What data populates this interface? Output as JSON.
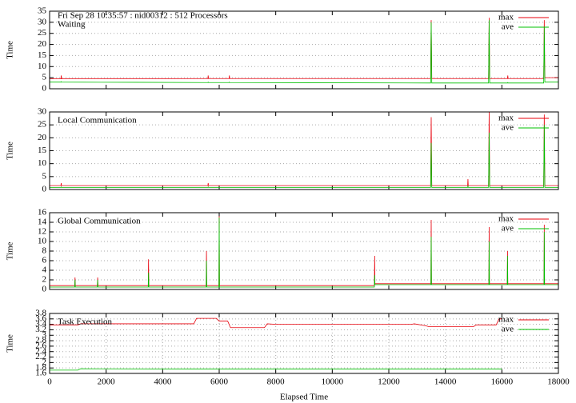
{
  "chart_data": [
    {
      "type": "line",
      "header": "Fri Sep 28 10:35:57 : nid00312 : 512 Processors",
      "title": "Waiting",
      "ylabel": "Time",
      "x": [
        0,
        400,
        410,
        420,
        3000,
        5600,
        5610,
        5620,
        6350,
        6360,
        6370,
        13480,
        13500,
        13520,
        15530,
        15550,
        15570,
        16200,
        16210,
        16220,
        17480,
        17500,
        17520,
        18000
      ],
      "series": [
        {
          "name": "max",
          "color": "#e8000b",
          "values": [
            4.5,
            4.5,
            6,
            4.5,
            4.5,
            4.6,
            6,
            4.6,
            4.6,
            6,
            4.6,
            4.6,
            31,
            4.6,
            4.6,
            32,
            4.6,
            4.6,
            6,
            4.6,
            4.6,
            31,
            5,
            5
          ]
        },
        {
          "name": "ave",
          "color": "#00c000",
          "values": [
            3,
            3,
            3.2,
            3,
            2.9,
            2.8,
            3,
            2.8,
            2.8,
            3,
            2.8,
            2.6,
            30,
            2.6,
            2.6,
            31,
            2.6,
            2.6,
            2.8,
            2.6,
            2.6,
            28,
            3,
            3
          ]
        }
      ],
      "xlim": [
        0,
        18000
      ],
      "ylim": [
        0,
        35
      ],
      "yticks": [
        0,
        5,
        10,
        15,
        20,
        25,
        30,
        35
      ],
      "grid": true
    },
    {
      "type": "line",
      "title": "Local Communication",
      "ylabel": "Time",
      "x": [
        0,
        400,
        410,
        420,
        5600,
        5610,
        5620,
        13480,
        13500,
        13520,
        14790,
        14800,
        14810,
        15530,
        15550,
        15570,
        17480,
        17500,
        17520,
        18000
      ],
      "series": [
        {
          "name": "max",
          "color": "#e8000b",
          "values": [
            1.5,
            1.5,
            2.5,
            1.5,
            1.5,
            2.5,
            1.5,
            1.5,
            28,
            1.5,
            1.5,
            4,
            1.5,
            1.5,
            30,
            1.5,
            1.5,
            29,
            1.5,
            1.5
          ]
        },
        {
          "name": "ave",
          "color": "#00c000",
          "values": [
            0.8,
            0.8,
            1,
            0.8,
            0.8,
            1,
            0.8,
            0.8,
            18,
            0.8,
            0.8,
            1.5,
            0.8,
            0.8,
            22,
            0.8,
            0.8,
            25,
            0.8,
            0.8
          ]
        }
      ],
      "xlim": [
        0,
        18000
      ],
      "ylim": [
        0,
        30
      ],
      "yticks": [
        0,
        5,
        10,
        15,
        20,
        25,
        30
      ],
      "grid": true
    },
    {
      "type": "line",
      "title": "Global Communication",
      "ylabel": "Time",
      "x": [
        0,
        890,
        900,
        910,
        1690,
        1700,
        1710,
        3490,
        3500,
        3510,
        5540,
        5550,
        5560,
        5990,
        6000,
        6010,
        11490,
        11500,
        11510,
        13490,
        13500,
        13510,
        15540,
        15550,
        15560,
        16190,
        16200,
        16210,
        17490,
        17500,
        17510,
        18000
      ],
      "series": [
        {
          "name": "max",
          "color": "#e8000b",
          "values": [
            0.8,
            0.8,
            2.5,
            0.8,
            0.8,
            2.5,
            0.8,
            0.8,
            6.3,
            0.8,
            0.8,
            8,
            0.8,
            0.8,
            15.3,
            0.8,
            0.8,
            7,
            1.2,
            1.2,
            14.5,
            1.2,
            1.2,
            13,
            1.2,
            1.2,
            8,
            1.2,
            1.2,
            13.5,
            1.2,
            1.2
          ]
        },
        {
          "name": "ave",
          "color": "#00c000",
          "values": [
            0.5,
            0.5,
            2,
            0.5,
            0.5,
            2,
            0.5,
            0.5,
            3.5,
            0.5,
            0.5,
            6,
            0.5,
            0.5,
            15,
            0.5,
            0.5,
            3,
            1,
            1,
            11,
            1,
            1,
            10,
            1,
            1,
            7,
            1,
            1,
            12,
            1,
            1
          ]
        }
      ],
      "xlim": [
        0,
        18000
      ],
      "ylim": [
        0,
        16
      ],
      "yticks": [
        0,
        2,
        4,
        6,
        8,
        10,
        12,
        14,
        16
      ],
      "grid": true
    },
    {
      "type": "line",
      "title": "Task Execution",
      "ylabel": "Time",
      "xlabel": "Elapsed Time",
      "x": [
        0,
        1000,
        1100,
        5100,
        5200,
        5900,
        6000,
        6300,
        6400,
        7600,
        7700,
        8000,
        12800,
        12900,
        13300,
        13400,
        15000,
        15100,
        15800,
        15900,
        16000
      ],
      "series": [
        {
          "name": "max",
          "color": "#e8000b",
          "values": [
            3.38,
            3.38,
            3.42,
            3.42,
            3.62,
            3.62,
            3.52,
            3.52,
            3.28,
            3.28,
            3.42,
            3.4,
            3.4,
            3.42,
            3.35,
            3.32,
            3.32,
            3.38,
            3.38,
            3.6,
            3.6
          ]
        },
        {
          "name": "ave",
          "color": "#00c000",
          "values": [
            1.72,
            1.72,
            1.77,
            1.76,
            1.76,
            1.76,
            1.76,
            1.76,
            1.76,
            1.76,
            1.76,
            1.76,
            1.76,
            1.76,
            1.76,
            1.76,
            1.76,
            1.76,
            1.76,
            1.76,
            1.76
          ]
        }
      ],
      "xlim": [
        0,
        18000
      ],
      "xticks": [
        0,
        2000,
        4000,
        6000,
        8000,
        10000,
        12000,
        14000,
        16000,
        18000
      ],
      "ylim": [
        1.6,
        3.8
      ],
      "yticks": [
        1.6,
        1.8,
        2,
        2.2,
        2.4,
        2.6,
        2.8,
        3,
        3.2,
        3.4,
        3.6,
        3.8
      ],
      "grid": true
    }
  ]
}
